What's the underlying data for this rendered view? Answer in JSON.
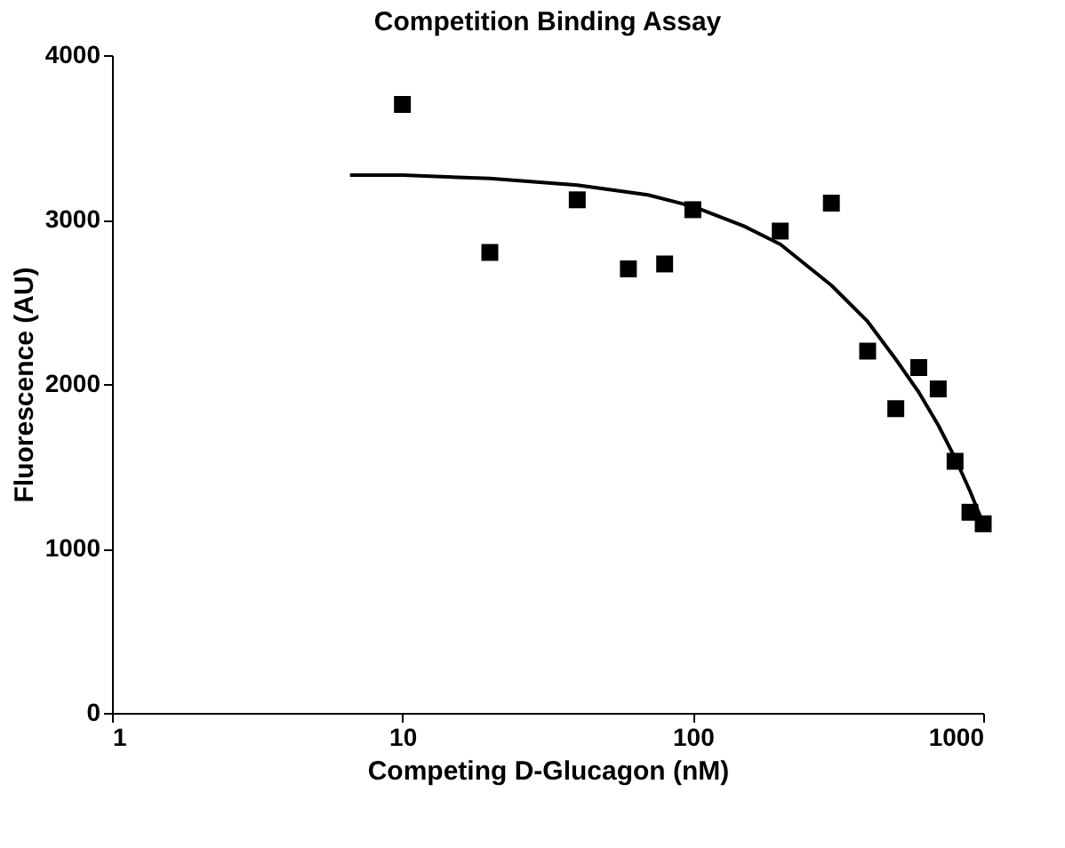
{
  "chart_data": {
    "type": "scatter",
    "title": "Competition Binding Assay",
    "xlabel": "Competing D-Glucagon (nM)",
    "ylabel": "Fluorescence (AU)",
    "log": "x",
    "xlim": [
      1,
      1000
    ],
    "xticks": [
      1,
      10,
      100,
      1000
    ],
    "ylim": [
      0,
      4000
    ],
    "yticks": [
      0,
      1000,
      2000,
      3000,
      4000
    ],
    "grid": false,
    "series": [
      {
        "marker": "square",
        "color": "#000000",
        "x": [
          10,
          20,
          40,
          60,
          80,
          100,
          200,
          300,
          400,
          500,
          600,
          700,
          800,
          900,
          1000
        ],
        "values": [
          3700,
          2800,
          3120,
          2700,
          2730,
          3060,
          2930,
          3100,
          2200,
          1850,
          2100,
          1970,
          1530,
          1220,
          1150
        ]
      },
      {
        "type": "line",
        "marker": "none",
        "color": "#000000",
        "x": [
          6.6,
          10,
          20,
          40,
          70,
          100,
          150,
          200,
          300,
          400,
          500,
          600,
          700,
          800,
          900,
          1000
        ],
        "values": [
          3270,
          3270,
          3250,
          3210,
          3150,
          3080,
          2960,
          2850,
          2600,
          2380,
          2150,
          1950,
          1750,
          1550,
          1350,
          1150
        ]
      }
    ]
  }
}
